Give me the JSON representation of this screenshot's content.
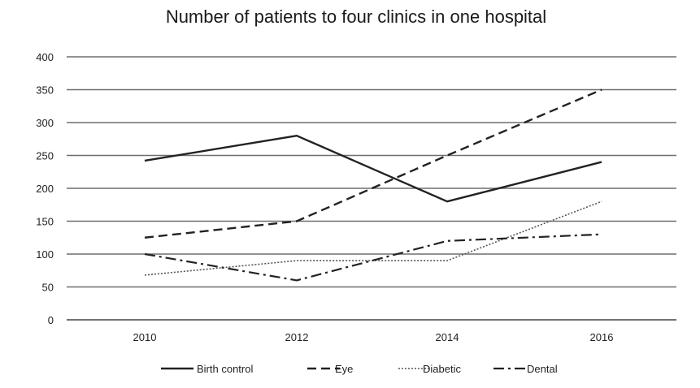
{
  "chart_data": {
    "type": "line",
    "title": "Number of patients to four clinics in one hospital",
    "xlabel": "",
    "ylabel": "",
    "categories": [
      "2010",
      "2012",
      "2014",
      "2016"
    ],
    "ylim": [
      0,
      400
    ],
    "yticks": [
      0,
      50,
      100,
      150,
      200,
      250,
      300,
      350,
      400
    ],
    "grid": true,
    "legend_position": "bottom",
    "series": [
      {
        "name": "Birth control",
        "style": "solid",
        "color": "#222222",
        "values": [
          242,
          280,
          180,
          240
        ]
      },
      {
        "name": "Eye",
        "style": "dashed",
        "color": "#222222",
        "values": [
          125,
          150,
          250,
          350
        ]
      },
      {
        "name": "Diabetic",
        "style": "dotted",
        "color": "#555555",
        "values": [
          68,
          90,
          90,
          180
        ]
      },
      {
        "name": "Dental",
        "style": "dashdot",
        "color": "#222222",
        "values": [
          100,
          60,
          120,
          130
        ]
      }
    ]
  }
}
